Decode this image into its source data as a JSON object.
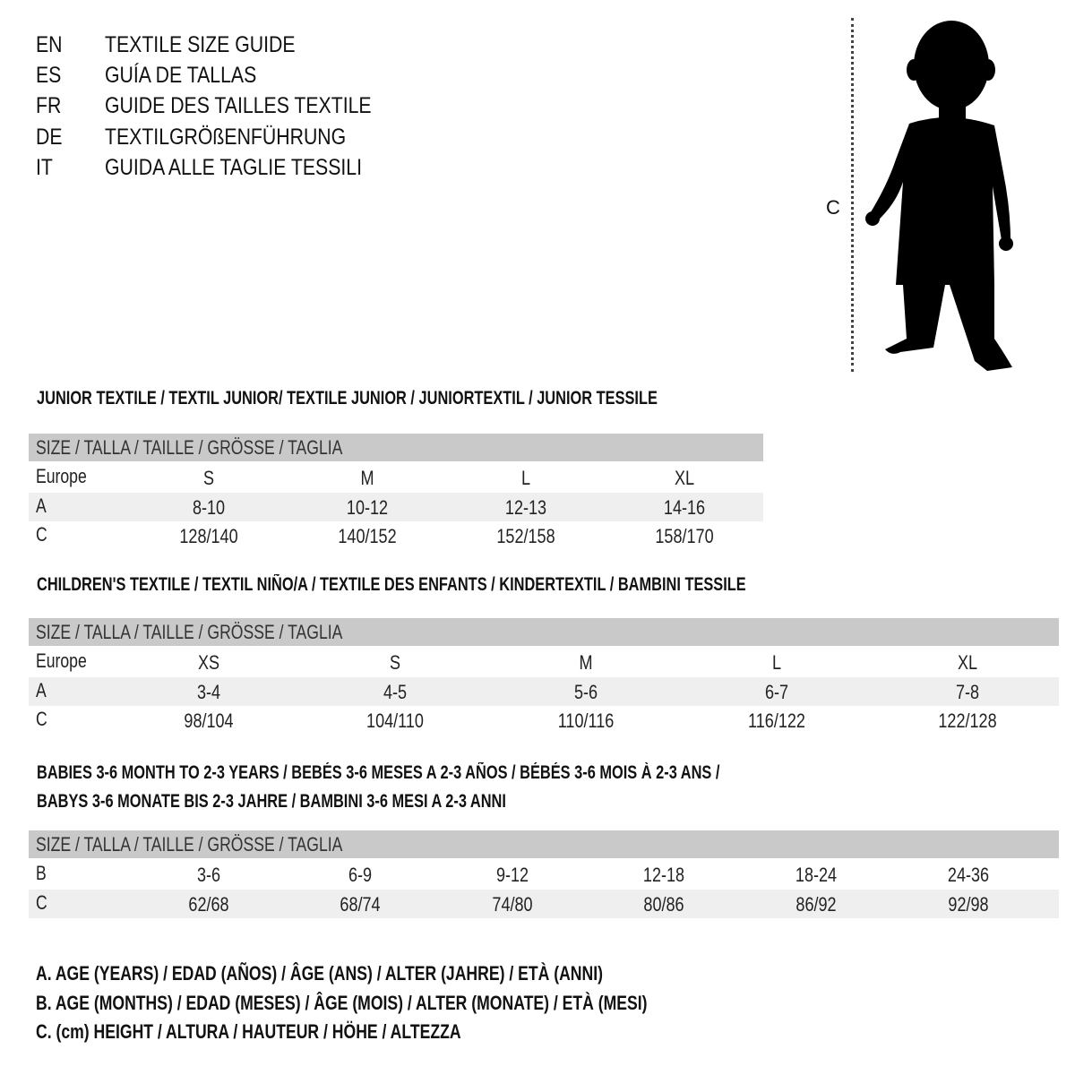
{
  "header": {
    "languages": [
      {
        "code": "EN",
        "title": "TEXTILE SIZE GUIDE"
      },
      {
        "code": "ES",
        "title": "GUÍA DE TALLAS"
      },
      {
        "code": "FR",
        "title": "GUIDE DES TAILLES TEXTILE"
      },
      {
        "code": "DE",
        "title": "TEXTILGRÖßENFÜHRUNG"
      },
      {
        "code": "IT",
        "title": "GUIDA ALLE TAGLIE TESSILI"
      }
    ]
  },
  "figure": {
    "measure_label": "C",
    "icon": "child-silhouette"
  },
  "colors": {
    "header_row": "#c9c9c9",
    "shaded_row": "#efefef"
  },
  "sections": [
    {
      "title": "JUNIOR TEXTILE / TEXTIL JUNIOR/ TEXTILE JUNIOR / JUNIORTEXTIL / JUNIOR TESSILE",
      "size_header": "SIZE / TALLA / TAILLE / GRÖSSE / TAGLIA",
      "rows": [
        {
          "label": "Europe",
          "values": [
            "S",
            "M",
            "L",
            "XL"
          ]
        },
        {
          "label": "A",
          "values": [
            "8-10",
            "10-12",
            "12-13",
            "14-16"
          ]
        },
        {
          "label": "C",
          "values": [
            "128/140",
            "140/152",
            "152/158",
            "158/170"
          ]
        }
      ]
    },
    {
      "title": "CHILDREN'S TEXTILE / TEXTIL NIÑO/A / TEXTILE DES ENFANTS / KINDERTEXTIL / BAMBINI TESSILE",
      "size_header": "SIZE / TALLA / TAILLE / GRÖSSE / TAGLIA",
      "rows": [
        {
          "label": "Europe",
          "values": [
            "XS",
            "S",
            "M",
            "L",
            "XL"
          ]
        },
        {
          "label": "A",
          "values": [
            "3-4",
            "4-5",
            "5-6",
            "6-7",
            "7-8"
          ]
        },
        {
          "label": "C",
          "values": [
            "98/104",
            "104/110",
            "110/116",
            "116/122",
            "122/128"
          ]
        }
      ]
    },
    {
      "title": "BABIES 3-6 MONTH TO 2-3 YEARS / BEBÉS 3-6 MESES A 2-3 AÑOS / BÉBÉS 3-6 MOIS À 2-3 ANS /",
      "title_line2": "BABYS 3-6 MONATE BIS 2-3 JAHRE / BAMBINI 3-6 MESI A 2-3 ANNI",
      "size_header": "SIZE / TALLA / TAILLE / GRÖSSE / TAGLIA",
      "rows": [
        {
          "label": "B",
          "values": [
            "3-6",
            "6-9",
            "9-12",
            "12-18",
            "18-24",
            "24-36"
          ]
        },
        {
          "label": "C",
          "values": [
            "62/68",
            "68/74",
            "74/80",
            "80/86",
            "86/92",
            "92/98"
          ]
        }
      ]
    }
  ],
  "legend": [
    "A. AGE (YEARS) / EDAD (AÑOS) / ÂGE (ANS) / ALTER (JAHRE) / ETÀ (ANNI)",
    "B. AGE (MONTHS) / EDAD (MESES) / ÂGE (MOIS) / ALTER (MONATE) / ETÀ (MESI)",
    "C. (cm) HEIGHT / ALTURA / HAUTEUR / HÖHE / ALTEZZA"
  ]
}
